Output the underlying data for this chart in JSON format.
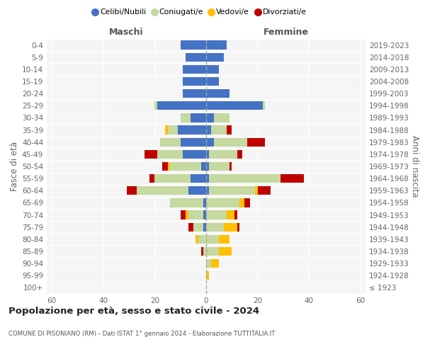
{
  "age_groups": [
    "100+",
    "95-99",
    "90-94",
    "85-89",
    "80-84",
    "75-79",
    "70-74",
    "65-69",
    "60-64",
    "55-59",
    "50-54",
    "45-49",
    "40-44",
    "35-39",
    "30-34",
    "25-29",
    "20-24",
    "15-19",
    "10-14",
    "5-9",
    "0-4"
  ],
  "birth_years": [
    "≤ 1923",
    "1924-1928",
    "1929-1933",
    "1934-1938",
    "1939-1943",
    "1944-1948",
    "1949-1953",
    "1954-1958",
    "1959-1963",
    "1964-1968",
    "1969-1973",
    "1974-1978",
    "1979-1983",
    "1984-1988",
    "1989-1993",
    "1994-1998",
    "1999-2003",
    "2004-2008",
    "2009-2013",
    "2014-2018",
    "2019-2023"
  ],
  "maschi_celibi": [
    0,
    0,
    0,
    0,
    0,
    1,
    1,
    1,
    7,
    6,
    2,
    9,
    10,
    11,
    6,
    19,
    9,
    9,
    9,
    8,
    10
  ],
  "maschi_coniugati": [
    0,
    0,
    0,
    1,
    3,
    4,
    6,
    13,
    20,
    14,
    12,
    10,
    8,
    4,
    4,
    1,
    0,
    0,
    0,
    0,
    0
  ],
  "maschi_vedovi": [
    0,
    0,
    0,
    0,
    1,
    0,
    1,
    0,
    0,
    0,
    1,
    0,
    0,
    1,
    0,
    0,
    0,
    0,
    0,
    0,
    0
  ],
  "maschi_divorziati": [
    0,
    0,
    0,
    1,
    0,
    2,
    2,
    0,
    4,
    2,
    2,
    5,
    0,
    0,
    0,
    0,
    0,
    0,
    0,
    0,
    0
  ],
  "femmine_nubili": [
    0,
    0,
    0,
    0,
    0,
    0,
    0,
    0,
    1,
    1,
    1,
    1,
    3,
    2,
    3,
    22,
    9,
    5,
    5,
    7,
    8
  ],
  "femmine_coniugate": [
    0,
    0,
    2,
    5,
    5,
    7,
    8,
    13,
    18,
    28,
    8,
    11,
    13,
    6,
    6,
    1,
    0,
    0,
    0,
    0,
    0
  ],
  "femmine_vedove": [
    0,
    1,
    3,
    5,
    4,
    5,
    3,
    2,
    1,
    0,
    0,
    0,
    0,
    0,
    0,
    0,
    0,
    0,
    0,
    0,
    0
  ],
  "femmine_divorziate": [
    0,
    0,
    0,
    0,
    0,
    1,
    1,
    2,
    5,
    9,
    1,
    2,
    7,
    2,
    0,
    0,
    0,
    0,
    0,
    0,
    0
  ],
  "color_celibi": "#4472c4",
  "color_coniugati": "#c6d9a0",
  "color_vedovi": "#ffc000",
  "color_divorziati": "#c00000",
  "xlim": 62,
  "title": "Popolazione per età, sesso e stato civile - 2024",
  "subtitle": "COMUNE DI PISONIANO (RM) - Dati ISTAT 1° gennaio 2024 - Elaborazione TUTTITALIA.IT",
  "label_maschi": "Maschi",
  "label_femmine": "Femmine",
  "ylabel_left": "Fasce di età",
  "ylabel_right": "Anni di nascita",
  "legend_labels": [
    "Celibi/Nubili",
    "Coniugati/e",
    "Vedovi/e",
    "Divorziati/e"
  ],
  "bg_color": "#ffffff",
  "plot_bg": "#f5f5f5"
}
